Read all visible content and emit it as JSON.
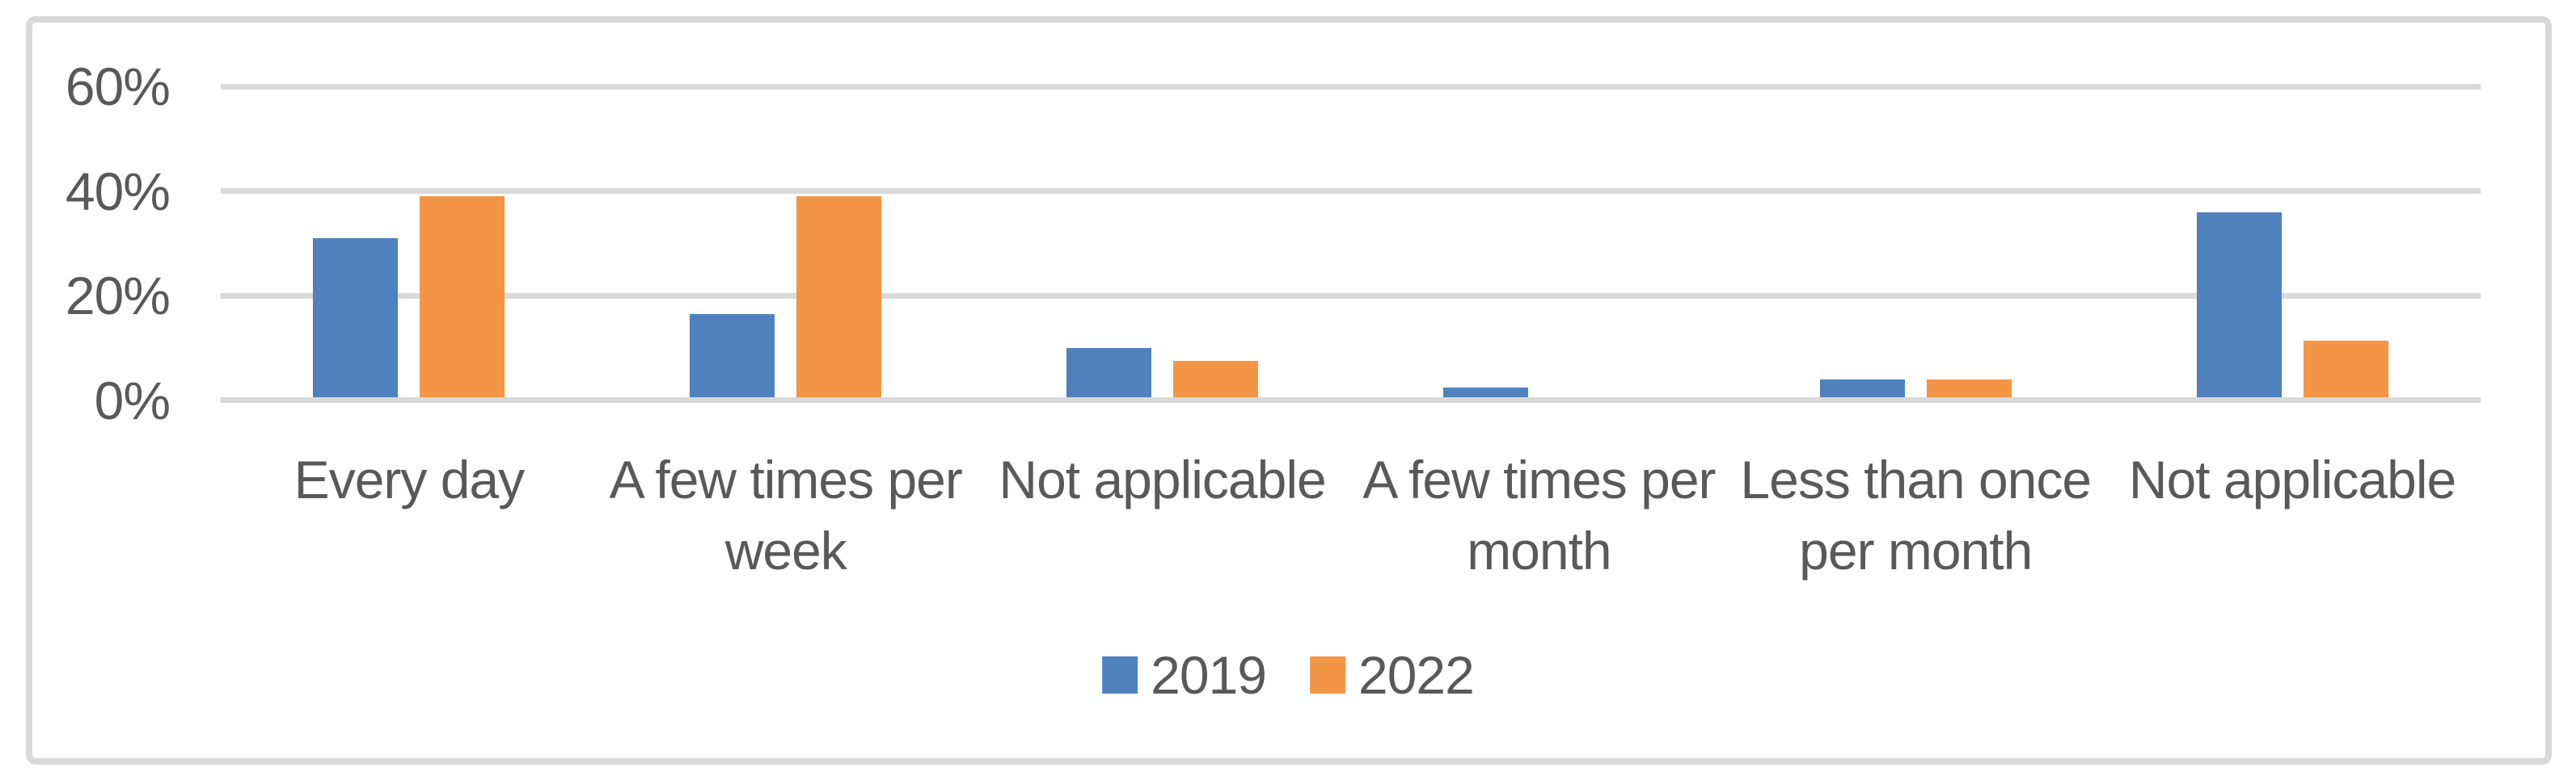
{
  "figure": {
    "background": "#FFFFFF",
    "frame_border_color": "#D9D9D9",
    "text_color": "#595959",
    "gridline_color": "#D9D9D9"
  },
  "chart_data": {
    "type": "bar",
    "title": "",
    "xlabel": "",
    "ylabel": "",
    "categories": [
      "Every day",
      "A few times per\nweek",
      "Not applicable",
      "A few times per\nmonth",
      "Less than once\nper month",
      "Not applicable"
    ],
    "series": [
      {
        "name": "2019",
        "color": "#4F81BD",
        "values": [
          31,
          16.5,
          10,
          2.5,
          4,
          36
        ]
      },
      {
        "name": "2022",
        "color": "#F49545",
        "values": [
          39,
          39,
          7.5,
          0,
          4,
          11.5
        ]
      }
    ],
    "y_axis": {
      "unit": "%",
      "tick_labels": [
        "60%",
        "40%",
        "20%",
        "0%"
      ],
      "tick_values": [
        60,
        40,
        20,
        0
      ],
      "min": 0,
      "max": 60
    },
    "grid": "horizontal",
    "legend_position": "bottom-center"
  }
}
